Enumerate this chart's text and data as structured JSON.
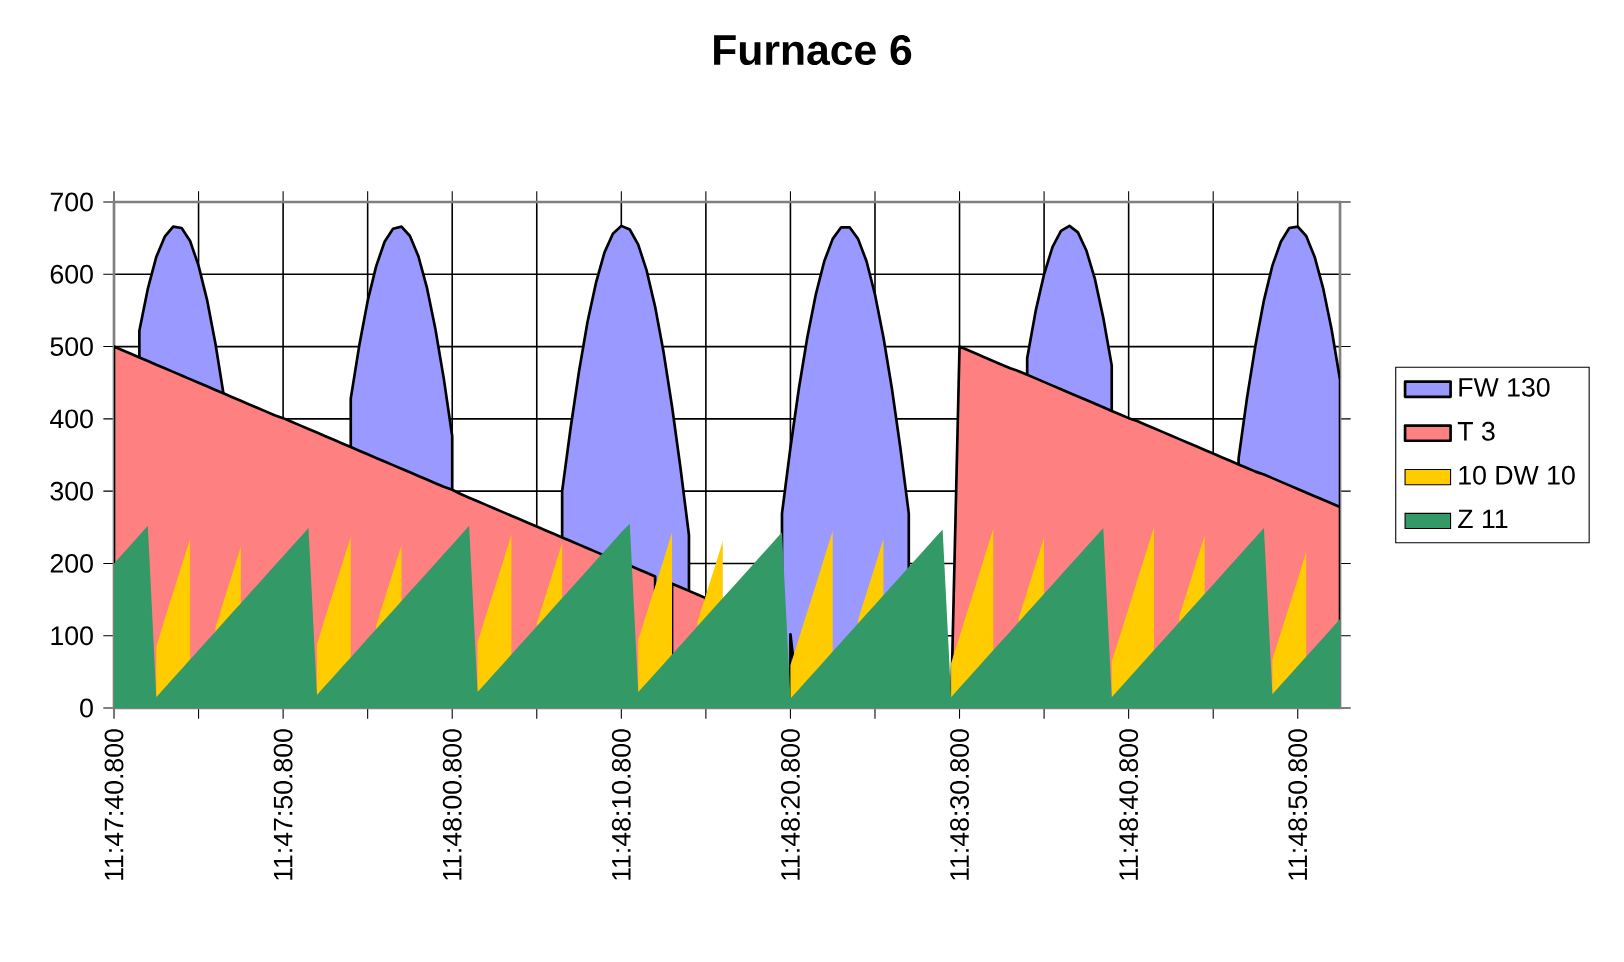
{
  "chart_data": {
    "type": "area",
    "title": "Furnace 6",
    "categories": [
      "11:47:40.800",
      null,
      null,
      null,
      null,
      null,
      null,
      null,
      null,
      null,
      null,
      null,
      null,
      null,
      null,
      null,
      null,
      null,
      null,
      null,
      "11:47:50.800",
      null,
      null,
      null,
      null,
      null,
      null,
      null,
      null,
      null,
      null,
      null,
      null,
      null,
      null,
      null,
      null,
      null,
      null,
      null,
      "11:48:00.800",
      null,
      null,
      null,
      null,
      null,
      null,
      null,
      null,
      null,
      null,
      null,
      null,
      null,
      null,
      null,
      null,
      null,
      null,
      null,
      "11:48:10.800",
      null,
      null,
      null,
      null,
      null,
      null,
      null,
      null,
      null,
      null,
      null,
      null,
      null,
      null,
      null,
      null,
      null,
      null,
      null,
      "11:48:20.800",
      null,
      null,
      null,
      null,
      null,
      null,
      null,
      null,
      null,
      null,
      null,
      null,
      null,
      null,
      null,
      null,
      null,
      null,
      null,
      "11:48:30.800",
      null,
      null,
      null,
      null,
      null,
      null,
      null,
      null,
      null,
      null,
      null,
      null,
      null,
      null,
      null,
      null,
      null,
      null,
      null,
      "11:48:40.800",
      null,
      null,
      null,
      null,
      null,
      null,
      null,
      null,
      null,
      null,
      null,
      null,
      null,
      null,
      null,
      null,
      null,
      null,
      null,
      "11:48:50.800",
      null,
      null,
      null,
      null,
      null
    ],
    "ylim": [
      0,
      700
    ],
    "yticks": [
      0,
      100,
      200,
      300,
      400,
      500,
      600,
      700
    ],
    "grid": true,
    "legend": "right",
    "series": [
      {
        "name": "FW  130",
        "color": "#9999ff",
        "line_style": "solid",
        "values": [
          null,
          null,
          null,
          522,
          580,
          624,
          652,
          666,
          664,
          646,
          612,
          565,
          504,
          431,
          null,
          null,
          null,
          null,
          0,
          0,
          0,
          0,
          0,
          0,
          null,
          null,
          null,
          null,
          428,
          501,
          563,
          611,
          645,
          663,
          666,
          653,
          625,
          582,
          525,
          456,
          376,
          null,
          null,
          null,
          0,
          0,
          0,
          0,
          0,
          0,
          null,
          null,
          null,
          300,
          387,
          466,
          534,
          588,
          630,
          656,
          667,
          662,
          641,
          605,
          555,
          492,
          417,
          332,
          239,
          null,
          null,
          0,
          0,
          0,
          0,
          0,
          0,
          null,
          null,
          269,
          360,
          442,
          513,
          572,
          618,
          649,
          665,
          665,
          649,
          618,
          572,
          513,
          442,
          360,
          269,
          null,
          null,
          0,
          0,
          0,
          0,
          0,
          0,
          null,
          null,
          null,
          null,
          null,
          484,
          549,
          600,
          638,
          660,
          667,
          658,
          633,
          594,
          540,
          474,
          null,
          null,
          null,
          null,
          null,
          0,
          0,
          0,
          0,
          0,
          0,
          null,
          null,
          null,
          345,
          429,
          502,
          564,
          612,
          645,
          664,
          666,
          653,
          624,
          581,
          524,
          454
        ]
      },
      {
        "name": "T  3",
        "color": "#ff8080",
        "line_style": "solid",
        "values": [
          500,
          495,
          490,
          485,
          480,
          475,
          470,
          465,
          460,
          455,
          450,
          445,
          440,
          435,
          430,
          425,
          420,
          415,
          410,
          405,
          401,
          396,
          391,
          386,
          381,
          376,
          371,
          366,
          361,
          356,
          351,
          346,
          341,
          336,
          331,
          326,
          321,
          316,
          311,
          306,
          302,
          296,
          291,
          286,
          281,
          276,
          271,
          266,
          261,
          256,
          251,
          246,
          241,
          236,
          231,
          226,
          221,
          216,
          211,
          null,
          null,
          197,
          192,
          187,
          182,
          null,
          172,
          167,
          162,
          157,
          152,
          null,
          null,
          null,
          null,
          null,
          null,
          null,
          null,
          null,
          102,
          0,
          0,
          0,
          0,
          0,
          0,
          0,
          0,
          0,
          0,
          0,
          0,
          0,
          0,
          0,
          0,
          0,
          0,
          0,
          500,
          495,
          490,
          485,
          480,
          475,
          470,
          466,
          461,
          456,
          451,
          446,
          441,
          436,
          431,
          426,
          421,
          416,
          411,
          406,
          401,
          397,
          392,
          387,
          382,
          377,
          372,
          367,
          362,
          357,
          352,
          347,
          342,
          337,
          332,
          327,
          323,
          318,
          313,
          308,
          303,
          298,
          293,
          288,
          283,
          278
        ]
      },
      {
        "name": "10 DW 10",
        "color": "#ffcc00",
        "values": [
          null,
          null,
          null,
          246,
          null,
          85,
          123,
          160,
          197,
          234,
          null,
          null,
          111,
          149,
          186,
          223,
          null,
          null,
          null,
          null,
          null,
          null,
          249,
          null,
          88,
          126,
          163,
          200,
          237,
          null,
          null,
          114,
          151,
          188,
          225,
          null,
          null,
          null,
          null,
          null,
          null,
          null,
          null,
          91,
          128,
          165,
          202,
          240,
          null,
          null,
          117,
          154,
          191,
          228,
          null,
          null,
          null,
          null,
          null,
          null,
          null,
          null,
          94,
          131,
          168,
          205,
          243,
          null,
          null,
          119,
          156,
          193,
          231,
          null,
          null,
          null,
          null,
          null,
          null,
          null,
          59,
          96,
          133,
          170,
          208,
          245,
          null,
          null,
          122,
          159,
          196,
          234,
          null,
          null,
          null,
          null,
          null,
          null,
          null,
          62,
          99,
          136,
          173,
          211,
          248,
          null,
          null,
          124,
          161,
          199,
          236,
          null,
          null,
          null,
          null,
          null,
          null,
          null,
          64,
          101,
          138,
          176,
          213,
          250,
          null,
          null,
          127,
          164,
          202,
          239,
          null,
          null,
          null,
          null,
          null,
          null,
          null,
          67,
          104,
          141,
          178,
          216,
          null,
          null,
          null,
          130
        ]
      },
      {
        "name": "Z  11",
        "color": "#339966",
        "values": [
          200,
          213,
          226,
          239,
          252,
          15,
          28,
          41,
          54,
          67,
          80,
          93,
          106,
          119,
          132,
          145,
          158,
          171,
          184,
          197,
          210,
          223,
          236,
          249,
          18,
          31,
          44,
          57,
          70,
          83,
          96,
          109,
          122,
          135,
          148,
          161,
          174,
          187,
          200,
          213,
          226,
          239,
          252,
          22,
          35,
          48,
          61,
          74,
          87,
          100,
          113,
          126,
          139,
          152,
          165,
          178,
          191,
          204,
          217,
          230,
          243,
          255,
          22,
          35,
          48,
          61,
          74,
          87,
          100,
          113,
          126,
          139,
          152,
          165,
          178,
          191,
          204,
          217,
          230,
          243,
          13,
          26,
          39,
          52,
          65,
          78,
          91,
          104,
          117,
          130,
          143,
          156,
          169,
          182,
          195,
          208,
          221,
          234,
          247,
          15,
          28,
          41,
          54,
          67,
          80,
          93,
          106,
          119,
          132,
          145,
          158,
          171,
          184,
          197,
          210,
          223,
          236,
          249,
          15,
          28,
          41,
          54,
          67,
          80,
          93,
          106,
          119,
          132,
          145,
          158,
          171,
          184,
          197,
          210,
          223,
          236,
          249,
          19,
          32,
          45,
          58,
          71,
          84,
          97,
          110,
          123
        ]
      }
    ]
  }
}
